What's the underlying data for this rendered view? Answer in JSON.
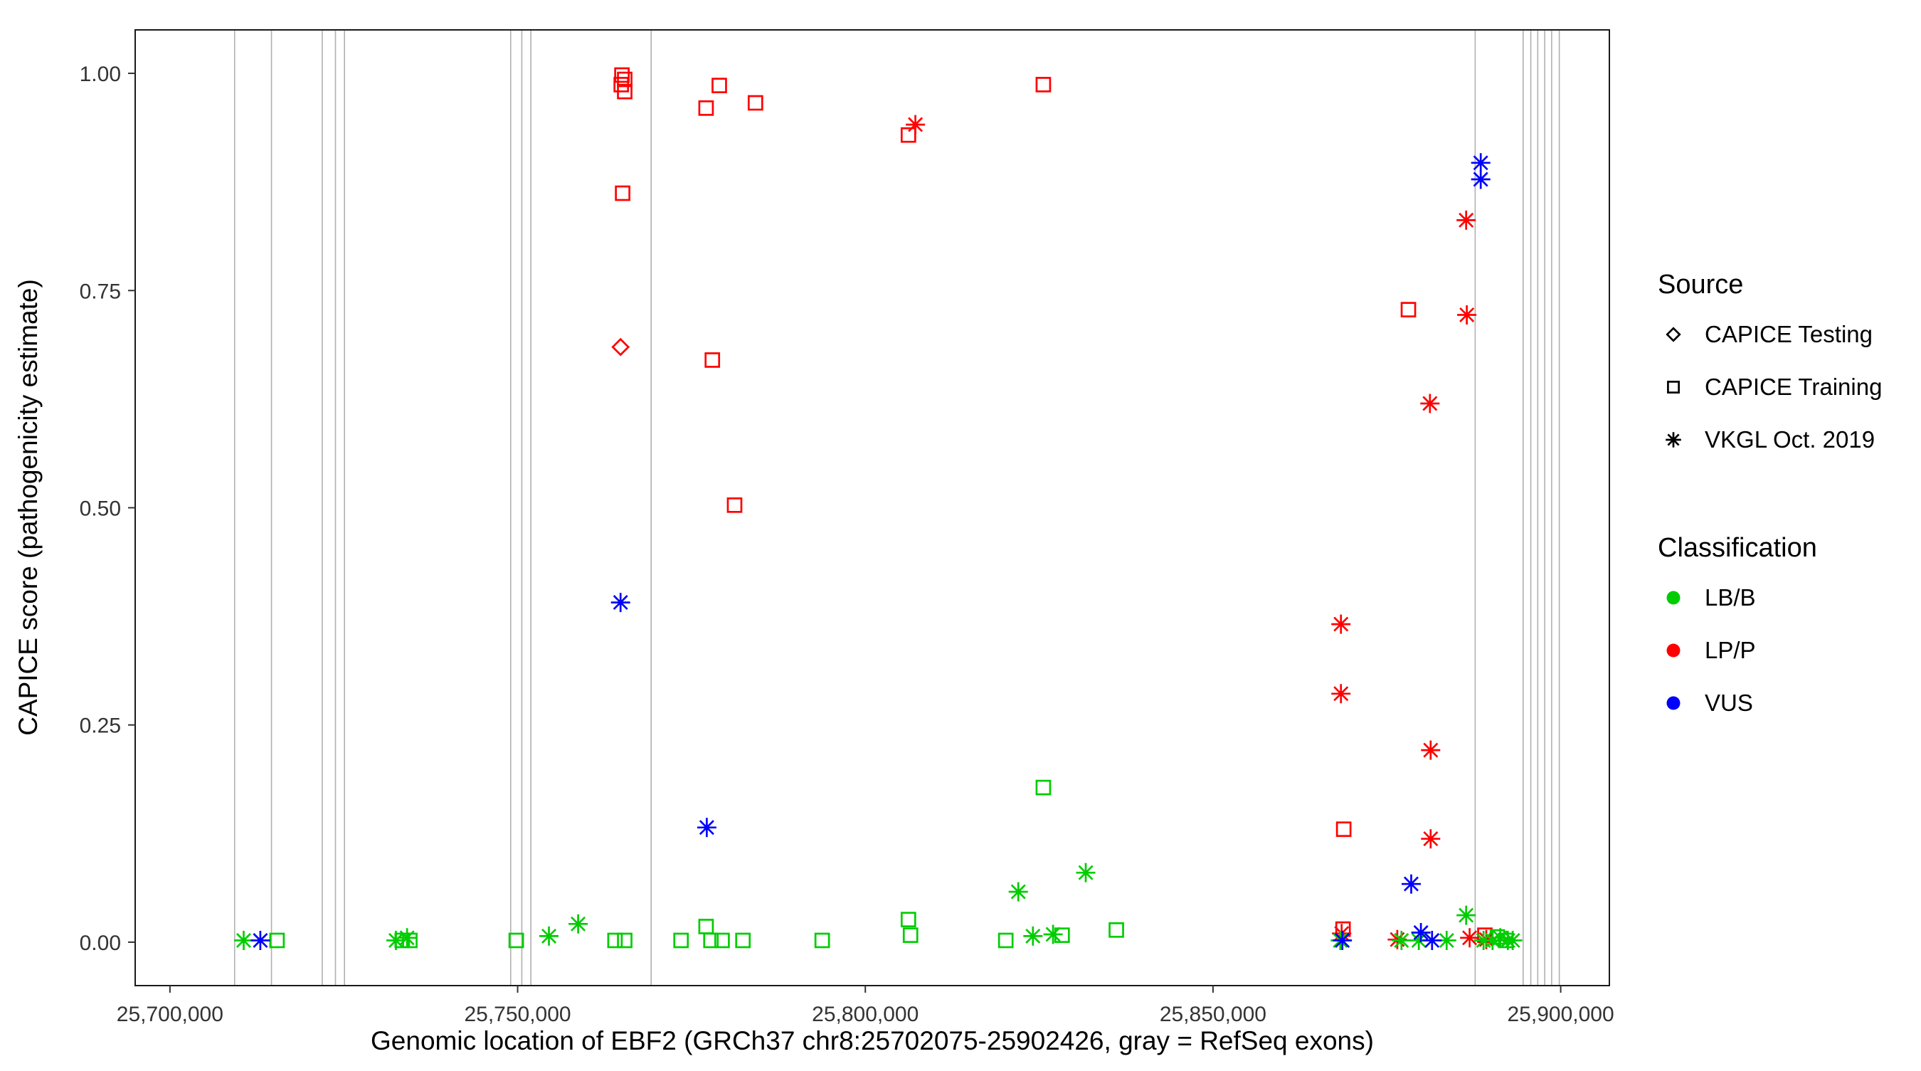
{
  "chart_data": {
    "type": "scatter",
    "title": "",
    "xlabel": "Genomic location of EBF2 (GRCh37 chr8:25702075-25902426, gray = RefSeq exons)",
    "ylabel": "CAPICE score (pathogenicity estimate)",
    "xlim": [
      25695000,
      25907000
    ],
    "ylim": [
      -0.05,
      1.05
    ],
    "grid": false,
    "x_ticks": [
      {
        "value": 25700000,
        "label": "25,700,000"
      },
      {
        "value": 25750000,
        "label": "25,750,000"
      },
      {
        "value": 25800000,
        "label": "25,800,000"
      },
      {
        "value": 25850000,
        "label": "25,850,000"
      },
      {
        "value": 25900000,
        "label": "25,900,000"
      }
    ],
    "y_ticks": [
      {
        "value": 0.0,
        "label": "0.00"
      },
      {
        "value": 0.25,
        "label": "0.25"
      },
      {
        "value": 0.5,
        "label": "0.50"
      },
      {
        "value": 0.75,
        "label": "0.75"
      },
      {
        "value": 1.0,
        "label": "1.00"
      }
    ],
    "palette": {
      "lbb_green": "#00CD00",
      "lpp_red": "#FF0000",
      "vus_blue": "#0000FF",
      "exon_gray": "#B0B0B0",
      "legend_marker_black": "#000000"
    },
    "exon_note": "gray vertical lines = RefSeq exons",
    "exon_positions": [
      25709300,
      25714600,
      25721900,
      25723800,
      25725100,
      25749000,
      25750600,
      25751900,
      25769200,
      25887700,
      25894600,
      25895700,
      25896700,
      25897700,
      25898700,
      25899800
    ],
    "series": [
      {
        "source": "CAPICE Testing",
        "classification": "LP/P",
        "shape": "diamond",
        "color": "#FF0000",
        "points": [
          [
            25764800,
            0.685
          ]
        ]
      },
      {
        "source": "CAPICE Training",
        "classification": "LP/P",
        "shape": "square",
        "color": "#FF0000",
        "points": [
          [
            25765000,
            0.998
          ],
          [
            25765400,
            0.993
          ],
          [
            25764900,
            0.987
          ],
          [
            25765400,
            0.979
          ],
          [
            25765100,
            0.862
          ],
          [
            25779000,
            0.986
          ],
          [
            25777100,
            0.96
          ],
          [
            25784200,
            0.966
          ],
          [
            25806200,
            0.929
          ],
          [
            25825600,
            0.987
          ],
          [
            25778000,
            0.67
          ],
          [
            25781200,
            0.503
          ],
          [
            25878100,
            0.728
          ],
          [
            25868800,
            0.13
          ],
          [
            25868700,
            0.015
          ],
          [
            25889100,
            0.008
          ]
        ]
      },
      {
        "source": "CAPICE Training",
        "classification": "LB/B",
        "shape": "square",
        "color": "#00CD00",
        "points": [
          [
            25825600,
            0.178
          ],
          [
            25715400,
            0.002
          ],
          [
            25733400,
            0.002
          ],
          [
            25734500,
            0.002
          ],
          [
            25749800,
            0.002
          ],
          [
            25764000,
            0.002
          ],
          [
            25765400,
            0.002
          ],
          [
            25773500,
            0.002
          ],
          [
            25777100,
            0.018
          ],
          [
            25777800,
            0.002
          ],
          [
            25779400,
            0.002
          ],
          [
            25782400,
            0.002
          ],
          [
            25793800,
            0.002
          ],
          [
            25806200,
            0.026
          ],
          [
            25806500,
            0.008
          ],
          [
            25820200,
            0.002
          ],
          [
            25828300,
            0.008
          ],
          [
            25836100,
            0.014
          ],
          [
            25890900,
            0.006
          ],
          [
            25892100,
            0.002
          ]
        ]
      },
      {
        "source": "VKGL Oct. 2019",
        "classification": "LP/P",
        "shape": "asterisk",
        "color": "#FF0000",
        "points": [
          [
            25807200,
            0.941
          ],
          [
            25886400,
            0.831
          ],
          [
            25886500,
            0.722
          ],
          [
            25881200,
            0.62
          ],
          [
            25868400,
            0.366
          ],
          [
            25868400,
            0.286
          ],
          [
            25881300,
            0.221
          ],
          [
            25881300,
            0.119
          ],
          [
            25868500,
            0.01
          ],
          [
            25876500,
            0.003
          ],
          [
            25886900,
            0.005
          ],
          [
            25889300,
            0.003
          ]
        ]
      },
      {
        "source": "VKGL Oct. 2019",
        "classification": "LB/B",
        "shape": "asterisk",
        "color": "#00CD00",
        "points": [
          [
            25710600,
            0.002
          ],
          [
            25732500,
            0.002
          ],
          [
            25734100,
            0.005
          ],
          [
            25754500,
            0.007
          ],
          [
            25758700,
            0.021
          ],
          [
            25822000,
            0.058
          ],
          [
            25824100,
            0.007
          ],
          [
            25827000,
            0.009
          ],
          [
            25831700,
            0.08
          ],
          [
            25886400,
            0.031
          ],
          [
            25868300,
            0.002
          ],
          [
            25877100,
            0.002
          ],
          [
            25879600,
            0.002
          ],
          [
            25883600,
            0.002
          ],
          [
            25888900,
            0.002
          ],
          [
            25890200,
            0.002
          ],
          [
            25891300,
            0.005
          ],
          [
            25892400,
            0.002
          ],
          [
            25893100,
            0.002
          ]
        ]
      },
      {
        "source": "VKGL Oct. 2019",
        "classification": "VUS",
        "shape": "asterisk",
        "color": "#0000FF",
        "points": [
          [
            25888500,
            0.897
          ],
          [
            25888500,
            0.878
          ],
          [
            25764800,
            0.391
          ],
          [
            25777200,
            0.132
          ],
          [
            25878500,
            0.067
          ],
          [
            25713000,
            0.002
          ],
          [
            25879900,
            0.011
          ],
          [
            25881500,
            0.002
          ],
          [
            25868600,
            0.002
          ]
        ]
      }
    ],
    "legend": {
      "source_title": "Source",
      "source_items": [
        {
          "label": "CAPICE Testing",
          "shape": "diamond"
        },
        {
          "label": "CAPICE Training",
          "shape": "square"
        },
        {
          "label": "VKGL Oct. 2019",
          "shape": "asterisk"
        }
      ],
      "classification_title": "Classification",
      "classification_items": [
        {
          "label": "LB/B",
          "color": "#00CD00"
        },
        {
          "label": "LP/P",
          "color": "#FF0000"
        },
        {
          "label": "VUS",
          "color": "#0000FF"
        }
      ]
    }
  }
}
